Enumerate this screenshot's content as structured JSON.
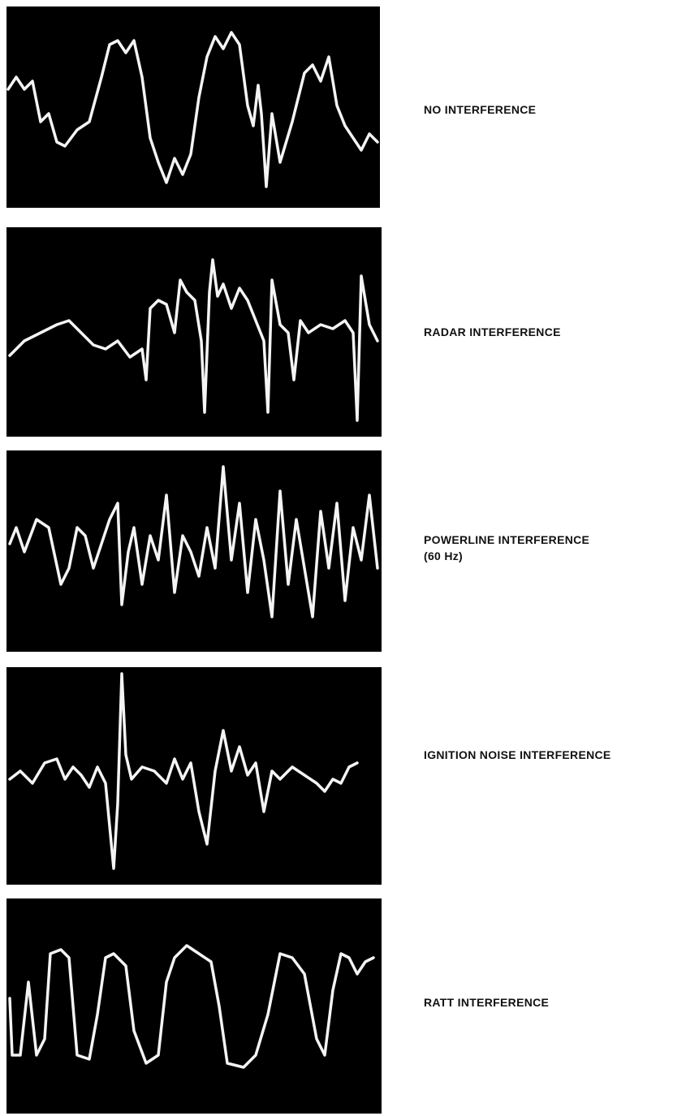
{
  "panels": [
    {
      "label": "NO INTERFERENCE"
    },
    {
      "label": "RADAR INTERFERENCE"
    },
    {
      "label": "POWERLINE INTERFERENCE",
      "sublabel": "(60 Hz)"
    },
    {
      "label": "IGNITION NOISE INTERFERENCE"
    },
    {
      "label": "RATT INTERFERENCE"
    }
  ]
}
